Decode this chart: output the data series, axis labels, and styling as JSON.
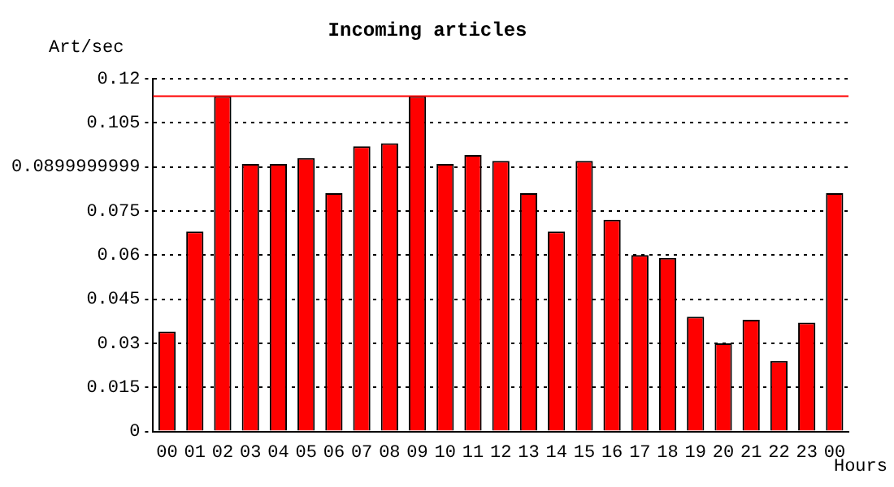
{
  "chart_data": {
    "type": "bar",
    "title": "Incoming articles",
    "xlabel": "Hours",
    "ylabel": "Art/sec",
    "categories": [
      "00",
      "01",
      "02",
      "03",
      "04",
      "05",
      "06",
      "07",
      "08",
      "09",
      "10",
      "11",
      "12",
      "13",
      "14",
      "15",
      "16",
      "17",
      "18",
      "19",
      "20",
      "21",
      "22",
      "23",
      "00"
    ],
    "series": [
      {
        "color": "#ff0000",
        "values": [
          0.034,
          0.068,
          0.114,
          0.091,
          0.091,
          0.093,
          0.081,
          0.097,
          0.098,
          0.114,
          0.091,
          0.094,
          0.092,
          0.081,
          0.068,
          0.092,
          0.072,
          0.06,
          0.059,
          0.039,
          0.03,
          0.038,
          0.024,
          0.037,
          0.081
        ]
      }
    ],
    "ylim": [
      0,
      0.12
    ],
    "yticks": [
      0,
      0.015,
      0.03,
      0.045,
      0.06,
      0.075,
      0.0899999999,
      0.105,
      0.12
    ],
    "ref_lines": [
      {
        "axis": "y",
        "value": 0.114,
        "color": "#ff0000"
      }
    ],
    "grid": "y",
    "legend": false
  }
}
